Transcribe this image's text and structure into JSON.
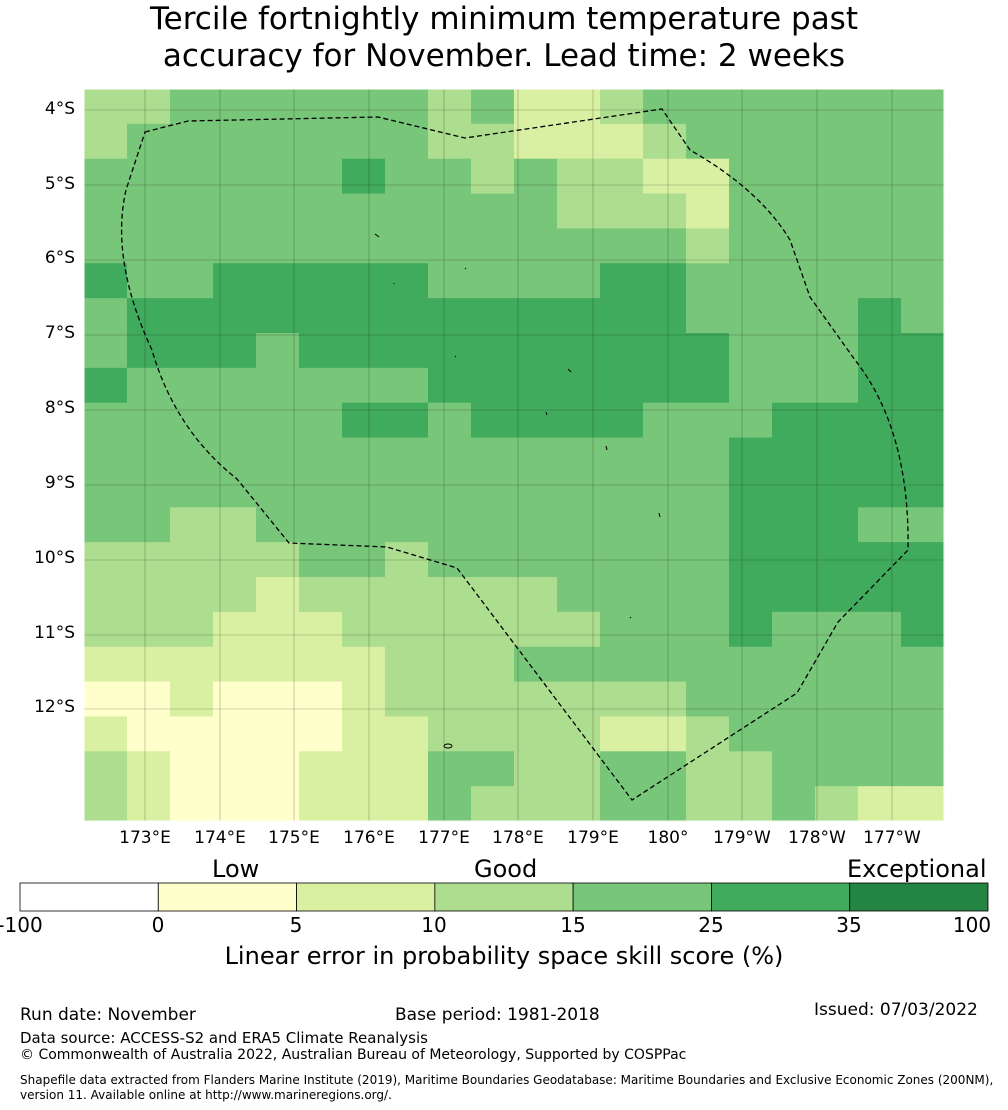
{
  "title": {
    "line1": "Tercile fortnightly minimum temperature past",
    "line2": "accuracy for November. Lead time: 2 weeks"
  },
  "map": {
    "lat_labels": [
      "4°S",
      "5°S",
      "6°S",
      "7°S",
      "8°S",
      "9°S",
      "10°S",
      "11°S",
      "12°S"
    ],
    "lon_labels": [
      "173°E",
      "174°E",
      "175°E",
      "176°E",
      "177°E",
      "178°E",
      "179°E",
      "180°",
      "179°W",
      "178°W",
      "177°W"
    ],
    "grid_values": [
      [
        12,
        12,
        18,
        18,
        18,
        18,
        18,
        18,
        12,
        18,
        7,
        7,
        12,
        18,
        18,
        18,
        18,
        18,
        18,
        18
      ],
      [
        12,
        18,
        18,
        18,
        18,
        18,
        18,
        18,
        12,
        12,
        7,
        7,
        7,
        12,
        18,
        18,
        18,
        18,
        18,
        18
      ],
      [
        18,
        18,
        18,
        18,
        18,
        18,
        30,
        18,
        18,
        12,
        18,
        12,
        12,
        7,
        7,
        18,
        18,
        18,
        18,
        18
      ],
      [
        18,
        18,
        18,
        18,
        18,
        18,
        18,
        18,
        18,
        18,
        18,
        12,
        12,
        12,
        7,
        18,
        18,
        18,
        18,
        18
      ],
      [
        18,
        18,
        18,
        18,
        18,
        18,
        18,
        18,
        18,
        18,
        18,
        18,
        18,
        18,
        12,
        18,
        18,
        18,
        18,
        18
      ],
      [
        30,
        18,
        18,
        30,
        30,
        30,
        30,
        30,
        18,
        18,
        18,
        18,
        30,
        30,
        18,
        18,
        18,
        18,
        18,
        18
      ],
      [
        18,
        30,
        30,
        30,
        30,
        30,
        30,
        30,
        30,
        30,
        30,
        30,
        30,
        30,
        18,
        18,
        18,
        18,
        30,
        18
      ],
      [
        18,
        30,
        30,
        30,
        18,
        30,
        30,
        30,
        30,
        30,
        30,
        30,
        30,
        30,
        30,
        18,
        18,
        18,
        30,
        30
      ],
      [
        30,
        18,
        18,
        18,
        18,
        18,
        18,
        18,
        30,
        30,
        30,
        30,
        30,
        30,
        30,
        18,
        18,
        18,
        30,
        30
      ],
      [
        18,
        18,
        18,
        18,
        18,
        18,
        30,
        30,
        18,
        30,
        30,
        30,
        30,
        18,
        18,
        18,
        30,
        30,
        30,
        30
      ],
      [
        18,
        18,
        18,
        18,
        18,
        18,
        18,
        18,
        18,
        18,
        18,
        18,
        18,
        18,
        18,
        30,
        30,
        30,
        30,
        30
      ],
      [
        18,
        18,
        18,
        18,
        18,
        18,
        18,
        18,
        18,
        18,
        18,
        18,
        18,
        18,
        18,
        30,
        30,
        30,
        30,
        30
      ],
      [
        18,
        18,
        12,
        12,
        18,
        18,
        18,
        18,
        18,
        18,
        18,
        18,
        18,
        18,
        18,
        30,
        30,
        30,
        18,
        18
      ],
      [
        12,
        12,
        12,
        12,
        12,
        18,
        18,
        12,
        18,
        18,
        18,
        18,
        18,
        18,
        18,
        30,
        30,
        30,
        30,
        30
      ],
      [
        12,
        12,
        12,
        12,
        7,
        12,
        12,
        12,
        12,
        12,
        12,
        18,
        18,
        18,
        18,
        30,
        30,
        30,
        30,
        30
      ],
      [
        12,
        12,
        12,
        7,
        7,
        7,
        12,
        12,
        12,
        12,
        12,
        12,
        18,
        18,
        18,
        30,
        18,
        18,
        18,
        30
      ],
      [
        7,
        7,
        7,
        7,
        7,
        7,
        7,
        12,
        12,
        12,
        18,
        18,
        18,
        18,
        18,
        18,
        18,
        18,
        18,
        18
      ],
      [
        3,
        3,
        7,
        3,
        3,
        3,
        7,
        12,
        12,
        12,
        12,
        12,
        12,
        12,
        18,
        18,
        18,
        18,
        18,
        18
      ],
      [
        7,
        3,
        3,
        3,
        3,
        3,
        7,
        7,
        12,
        12,
        12,
        12,
        7,
        7,
        12,
        18,
        18,
        18,
        18,
        18
      ],
      [
        12,
        7,
        3,
        3,
        3,
        7,
        7,
        7,
        18,
        18,
        12,
        12,
        18,
        18,
        12,
        12,
        18,
        18,
        18,
        18
      ],
      [
        12,
        7,
        3,
        3,
        3,
        7,
        7,
        7,
        18,
        12,
        12,
        12,
        18,
        18,
        12,
        12,
        18,
        12,
        7,
        7
      ]
    ]
  },
  "colorbar": {
    "category_low": "Low",
    "category_good": "Good",
    "category_exceptional": "Exceptional",
    "tick_labels": [
      "-100",
      "0",
      "5",
      "10",
      "15",
      "25",
      "35",
      "100"
    ],
    "colors": [
      "#ffffff",
      "#ffffcc",
      "#d9f0a3",
      "#addd8e",
      "#78c679",
      "#41ab5d",
      "#238443"
    ],
    "label": "Linear error in probability space skill score (%)"
  },
  "footer": {
    "run_date": "Run date: November",
    "base_period": "Base period: 1981-2018",
    "issued": "Issued: 07/03/2022",
    "data_source": "Data source: ACCESS-S2 and ERA5 Climate Reanalysis",
    "copyright": "© Commonwealth of Australia 2022, Australian Bureau of Meteorology, Supported by COSPPac",
    "shapefile_line1": "Shapefile data extracted from Flanders Marine Institute (2019), Maritime Boundaries Geodatabase: Maritime Boundaries and Exclusive Economic Zones (200NM),",
    "shapefile_line2": "version 11. Available online at http://www.marineregions.org/."
  }
}
